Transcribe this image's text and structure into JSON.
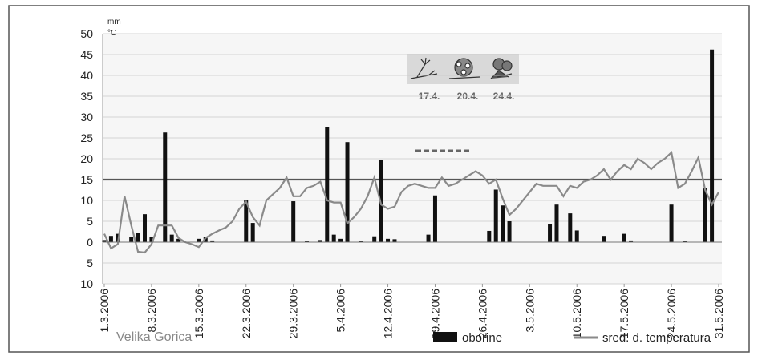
{
  "chart_data": {
    "type": "bar-line",
    "y_units": [
      "mm",
      "°C"
    ],
    "categories": [
      "1.3.2006",
      null,
      null,
      null,
      null,
      null,
      null,
      "8.3.2006",
      null,
      null,
      null,
      null,
      null,
      null,
      "15.3.2006",
      null,
      null,
      null,
      null,
      null,
      null,
      "22.3.2006",
      null,
      null,
      null,
      null,
      null,
      null,
      "29.3.2006",
      null,
      null,
      null,
      null,
      null,
      null,
      "5.4.2006",
      null,
      null,
      null,
      null,
      null,
      null,
      "12.4.2006",
      null,
      null,
      null,
      null,
      null,
      null,
      "19.4.2006",
      null,
      null,
      null,
      null,
      null,
      null,
      "26.4.2006",
      null,
      null,
      null,
      null,
      null,
      null,
      "3.5.2006",
      null,
      null,
      null,
      null,
      null,
      null,
      "10.5.2006",
      null,
      null,
      null,
      null,
      null,
      null,
      "17.5.2006",
      null,
      null,
      null,
      null,
      null,
      null,
      "24.5.2006",
      null,
      null,
      null,
      null,
      null,
      null,
      "31.5.2006"
    ],
    "series": [
      {
        "name": "oborine",
        "color": "#111111",
        "kind": "bar",
        "values": [
          0.5,
          1.5,
          2,
          0,
          1.3,
          2.3,
          6.7,
          1.3,
          0,
          26.3,
          1.8,
          0.8,
          0,
          0,
          0.8,
          1.2,
          0.4,
          0,
          0,
          0,
          0,
          10,
          4.6,
          0,
          0,
          0,
          0,
          0,
          9.8,
          0,
          0.3,
          0,
          0.5,
          27.6,
          1.8,
          0.8,
          24,
          0,
          0.3,
          0,
          1.4,
          19.8,
          0.8,
          0.7,
          0,
          0,
          0,
          0,
          1.8,
          11.2,
          0,
          0,
          0,
          0,
          0,
          0,
          0,
          2.7,
          12.6,
          8.8,
          5,
          0,
          0,
          0,
          0,
          0,
          4.3,
          9,
          0,
          6.9,
          2.8,
          0,
          0,
          0,
          1.5,
          0,
          0,
          2,
          0.4,
          0,
          0,
          0,
          0,
          0,
          9,
          0,
          0.3,
          0,
          0,
          13,
          46.2,
          0
        ]
      },
      {
        "name": "sred. d. temperatura",
        "color": "#8a8a8a",
        "kind": "line",
        "values": [
          2,
          -1.5,
          -0.5,
          11,
          4,
          -2.3,
          -2.5,
          -0.5,
          4,
          4,
          4,
          1,
          0,
          -0.5,
          -1.2,
          1,
          2,
          2.8,
          3.5,
          5,
          8,
          9.7,
          6,
          4,
          10,
          11.5,
          13,
          15.5,
          11,
          11,
          13,
          13.5,
          14.5,
          10,
          9.5,
          9.5,
          4.5,
          6,
          8,
          11,
          15.5,
          9,
          8,
          8.5,
          12,
          13.5,
          14,
          13.5,
          13,
          13,
          15.5,
          13.5,
          14,
          15,
          16,
          17,
          16,
          14,
          15,
          10.5,
          6.5,
          8,
          10,
          12,
          14,
          13.5,
          13.5,
          13.5,
          11,
          13.5,
          13,
          14.5,
          15,
          16,
          17.5,
          15,
          17,
          18.5,
          17.5,
          20,
          19,
          17.5,
          19,
          20,
          21.5,
          13,
          14,
          17,
          20.3,
          12.5,
          9,
          12
        ]
      }
    ],
    "ylim": [
      -10,
      50
    ],
    "yticks": [
      {
        "value": -10,
        "label": "10"
      },
      {
        "value": -5,
        "label": "5"
      },
      0,
      5,
      10,
      15,
      20,
      25,
      30,
      35,
      40,
      45,
      50
    ],
    "grid": true,
    "reference_line": 15,
    "annotations": [
      "17.4.",
      "20.4.",
      "24.4."
    ],
    "location": "Velika Gorica"
  }
}
